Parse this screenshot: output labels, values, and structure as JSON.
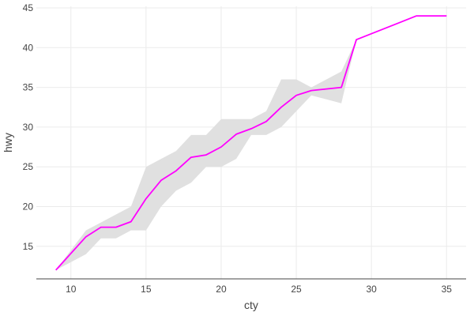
{
  "chart_data": {
    "type": "line",
    "xlabel": "cty",
    "ylabel": "hwy",
    "xlim": [
      7.7,
      36.3
    ],
    "ylim": [
      10.9,
      45.2
    ],
    "x_ticks": [
      10,
      15,
      20,
      25,
      30,
      35
    ],
    "y_ticks": [
      15,
      20,
      25,
      30,
      35,
      40,
      45
    ],
    "grid": true,
    "colors": {
      "line": "#ff00ff",
      "band": "#e0e0e0",
      "grid": "#ebebeb",
      "axis": "#444444"
    },
    "series": [
      {
        "x": [
          9,
          11,
          12,
          13,
          14,
          15,
          16,
          17,
          18,
          19,
          20,
          21,
          22,
          23,
          24,
          25,
          26,
          28,
          29,
          33,
          35
        ],
        "y": [
          12,
          16.2,
          17.4,
          17.4,
          18.1,
          21,
          23.3,
          24.5,
          26.2,
          26.5,
          27.5,
          29.1,
          29.8,
          30.7,
          32.5,
          34,
          34.6,
          35,
          41,
          44,
          44
        ]
      }
    ],
    "band": {
      "x": [
        9,
        11,
        12,
        13,
        14,
        15,
        16,
        17,
        18,
        19,
        20,
        21,
        22,
        23,
        24,
        25,
        26,
        28,
        29,
        33,
        35
      ],
      "lower": [
        12,
        14,
        16,
        16,
        17,
        17,
        20,
        22,
        23,
        25,
        25,
        26,
        29,
        29,
        30,
        32,
        34,
        33,
        41,
        44,
        44
      ],
      "upper": [
        12,
        17,
        18,
        19,
        20,
        25,
        26,
        27,
        29,
        29,
        31,
        31,
        31,
        32,
        36,
        36,
        35,
        37,
        41,
        44,
        44
      ]
    }
  }
}
